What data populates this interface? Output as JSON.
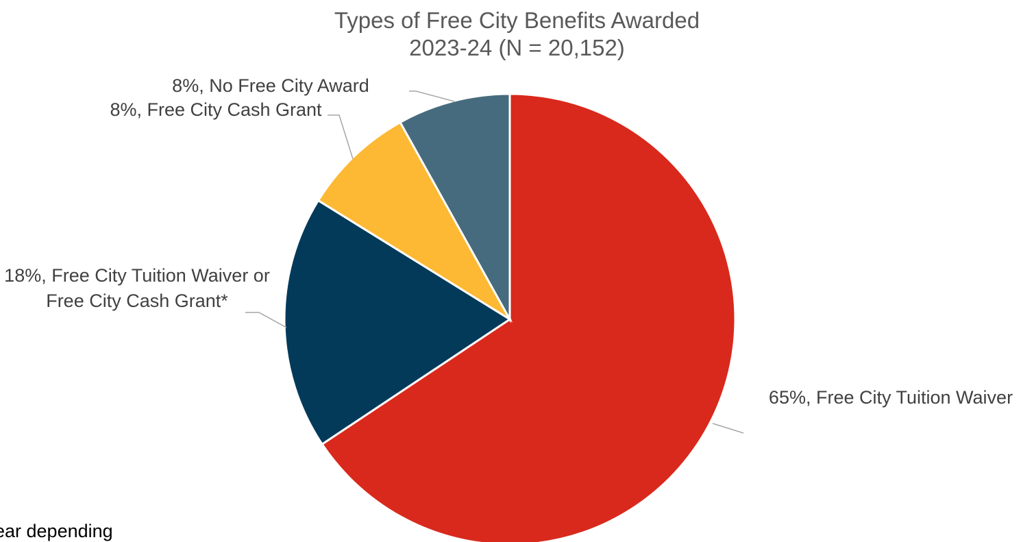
{
  "chart_data": {
    "type": "pie",
    "title": "Types of Free City Benefits Awarded",
    "subtitle": "2023-24 (N = 20,152)",
    "categories": [
      "Free City Tuition Waiver",
      "Free City Tuition Waiver or Free City Cash Grant*",
      "Free City Cash Grant",
      "No Free City Award"
    ],
    "values": [
      65,
      18,
      8,
      8
    ],
    "value_labels": [
      "65%",
      "18%",
      "8%",
      "8%"
    ],
    "colors": [
      "#d9291c",
      "#033a5a",
      "#fdb933",
      "#476b7e"
    ],
    "footnote": "ear depending"
  }
}
